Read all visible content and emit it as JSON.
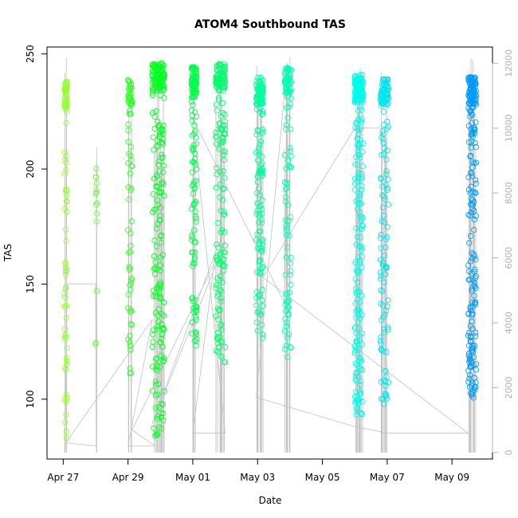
{
  "chart_data": {
    "type": "scatter",
    "title": "ATOM4 Southbound TAS",
    "xlabel": "Date",
    "ylabel": "TAS",
    "x_ticks": [
      "Apr 27",
      "Apr 29",
      "May 01",
      "May 03",
      "May 05",
      "May 07",
      "May 09"
    ],
    "y_ticks": [
      100,
      150,
      200,
      250
    ],
    "y2_ticks": [
      0,
      2000,
      4000,
      6000,
      8000,
      10000,
      12000
    ],
    "xlim": [
      "2016-04-26T12:00",
      "2016-05-10T06:00"
    ],
    "ylim": [
      74,
      253
    ],
    "y2lim": [
      -200,
      12500
    ],
    "grid": false,
    "legend": "none",
    "colors": {
      "point_start": "#99ff33",
      "point_mid": "#00ff33",
      "point_teal": "#00ffcc",
      "point_end": "#0099ff",
      "line": "#c0c0c0",
      "right_axis": "#b0b0b0"
    },
    "series": [
      {
        "values_description": "TAS observations (open circles), colored by date",
        "clusters": [
          {
            "date": "2016-04-27",
            "x": [
              "2016-04-27T01:00",
              "2016-04-27T03:00"
            ],
            "tas_range": [
              81,
              238
            ],
            "n": 90
          },
          {
            "date": "2016-04-28",
            "x": [
              "2016-04-28T00:00",
              "2016-04-28T01:00"
            ],
            "tas_range": [
              122,
              201
            ],
            "n": 14
          },
          {
            "date": "2016-04-29",
            "x": [
              "2016-04-29T00:00",
              "2016-04-29T03:00"
            ],
            "tas_range": [
              110,
              239
            ],
            "n": 80
          },
          {
            "date": "2016-04-29/30",
            "x": [
              "2016-04-29T18:00",
              "2016-04-30T03:00"
            ],
            "tas_range": [
              84,
              246
            ],
            "n": 260
          },
          {
            "date": "2016-05-01",
            "x": [
              "2016-04-30T23:00",
              "2016-05-01T03:00"
            ],
            "tas_range": [
              123,
              245
            ],
            "n": 150
          },
          {
            "date": "2016-05-01/02",
            "x": [
              "2016-05-01T17:00",
              "2016-05-02T00:00"
            ],
            "tas_range": [
              115,
              246
            ],
            "n": 180
          },
          {
            "date": "2016-05-03",
            "x": [
              "2016-05-02T23:00",
              "2016-05-03T04:00"
            ],
            "tas_range": [
              126,
              240
            ],
            "n": 170
          },
          {
            "date": "2016-05-03/04",
            "x": [
              "2016-05-03T20:00",
              "2016-05-04T01:00"
            ],
            "tas_range": [
              118,
              244
            ],
            "n": 120
          },
          {
            "date": "2016-05-06",
            "x": [
              "2016-05-06T00:00",
              "2016-05-06T06:00"
            ],
            "tas_range": [
              92,
              241
            ],
            "n": 280
          },
          {
            "date": "2016-05-06/07",
            "x": [
              "2016-05-06T19:00",
              "2016-05-07T01:00"
            ],
            "tas_range": [
              95,
              239
            ],
            "n": 160
          },
          {
            "date": "2016-05-09",
            "x": [
              "2016-05-09T12:00",
              "2016-05-09T18:00"
            ],
            "tas_range": [
              100,
              240
            ],
            "n": 240
          }
        ]
      },
      {
        "name": "",
        "values_description": "Altitude trace (gray line), right axis",
        "polyline": [
          [
            "2016-04-27T01:00",
            0
          ],
          [
            "2016-04-27T03:00",
            5200
          ],
          [
            "2016-04-28T00:00",
            5200
          ],
          [
            "2016-04-28T00:30",
            200
          ],
          [
            "2016-04-27T02:00",
            300
          ],
          [
            "2016-04-29T18:00",
            4100
          ],
          [
            "2016-04-29T00:00",
            200
          ],
          [
            "2016-04-29T20:00",
            200
          ],
          [
            "2016-04-29T03:00",
            700
          ],
          [
            "2016-05-02T00:00",
            6500
          ],
          [
            "2016-04-29T18:00",
            900
          ],
          [
            "2016-05-01T17:00",
            6200
          ],
          [
            "2016-05-01T00:00",
            600
          ],
          [
            "2016-05-02T00:00",
            600
          ],
          [
            "2016-05-01T00:00",
            10300
          ],
          [
            "2016-05-03T20:00",
            4600
          ],
          [
            "2016-05-03T22:00",
            12000
          ],
          [
            "2016-05-02T23:00",
            1700
          ],
          [
            "2016-05-06T00:00",
            800
          ],
          [
            "2016-05-07T00:00",
            600
          ],
          [
            "2016-05-09T12:00",
            600
          ],
          [
            "2016-05-03T04:00",
            5400
          ],
          [
            "2016-05-06T00:00",
            10000
          ],
          [
            "2016-05-07T01:00",
            10000
          ]
        ]
      }
    ]
  }
}
